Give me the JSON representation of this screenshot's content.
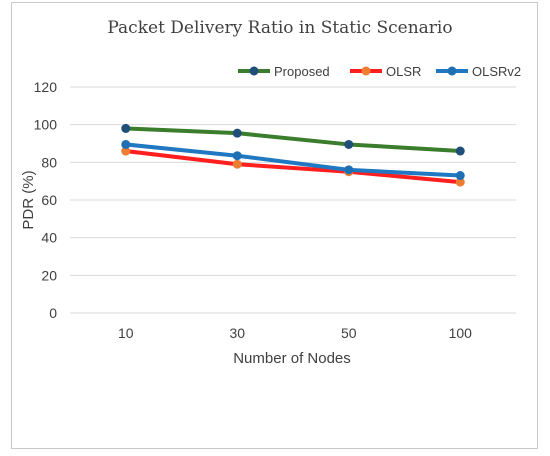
{
  "chart_data": {
    "type": "line",
    "title": "Packet Delivery Ratio in Static Scenario",
    "xlabel": "Number of Nodes",
    "ylabel": "PDR (%)",
    "categories": [
      "10",
      "30",
      "50",
      "100"
    ],
    "ylim": [
      0,
      120
    ],
    "yticks": [
      0,
      20,
      40,
      60,
      80,
      100,
      120
    ],
    "grid": true,
    "legend_position": "top-right",
    "series": [
      {
        "name": "Proposed",
        "color": "#3a7d2c",
        "marker_color": "#1f4e79",
        "values": [
          98,
          95.5,
          89.5,
          86
        ]
      },
      {
        "name": "OLSR",
        "color": "#ff1f1f",
        "marker_color": "#ed7d31",
        "values": [
          86,
          79,
          75,
          69.5
        ]
      },
      {
        "name": "OLSRv2",
        "color": "#1f78c1",
        "marker_color": "#1f6fb5",
        "values": [
          89.5,
          83.5,
          76,
          73
        ]
      }
    ]
  }
}
